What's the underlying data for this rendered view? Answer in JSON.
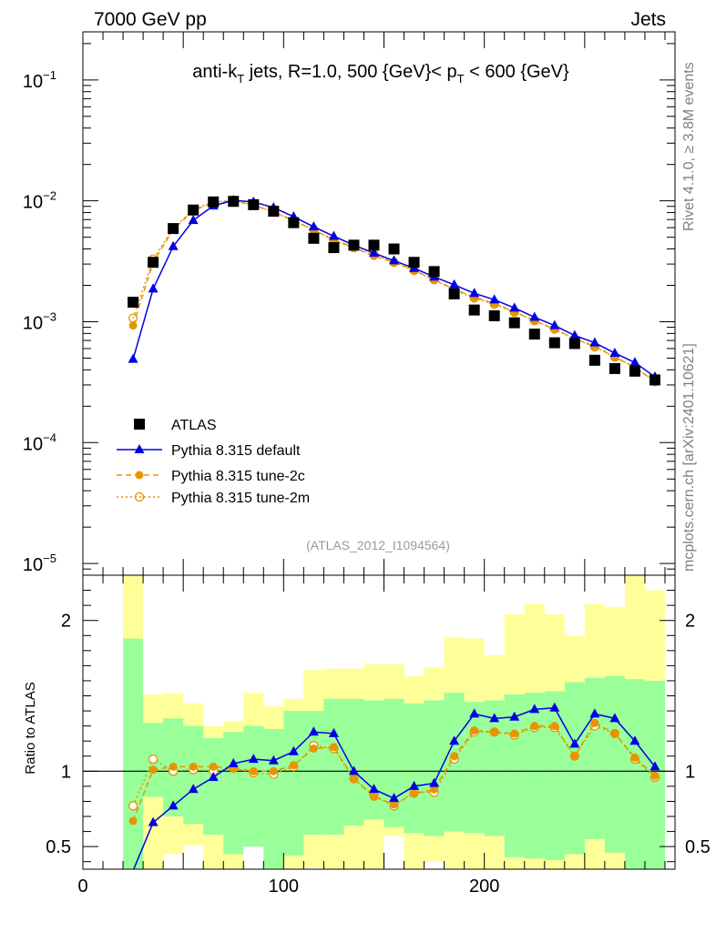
{
  "header": {
    "left": "7000 GeV pp",
    "right": "Jets"
  },
  "side_labels": {
    "top": "Rivet 4.1.0, ≥ 3.8M events",
    "bottom": "mcplots.cern.ch [arXiv:2401.10621]"
  },
  "chart_data": {
    "type": "scatter",
    "title": {
      "pre": "anti-k",
      "sub1": "T",
      "mid": " jets, R=1.0, 500 {GeV}< p",
      "sub2": "T",
      "post": " < 600 {GeV}"
    },
    "analysis_id": "(ATLAS_2012_I1094564)",
    "xlim": [
      0,
      295
    ],
    "x_ticks": [
      0,
      100,
      200
    ],
    "upper": {
      "yscale": "log",
      "ylim": [
        8e-06,
        0.25
      ],
      "y_ticks": [
        {
          "v": 0.1,
          "base": "10",
          "exp": "−1"
        },
        {
          "v": 0.01,
          "base": "10",
          "exp": "−2"
        },
        {
          "v": 0.001,
          "base": "10",
          "exp": "−3"
        },
        {
          "v": 0.0001,
          "base": "10",
          "exp": "−4"
        },
        {
          "v": 1e-05,
          "base": "10",
          "exp": "−5"
        }
      ]
    },
    "lower": {
      "ylabel": "Ratio to ATLAS",
      "ylim": [
        0.35,
        2.3
      ],
      "y_ticks": [
        {
          "v": 0.5,
          "label": "0.5"
        },
        {
          "v": 1,
          "label": "1"
        },
        {
          "v": 2,
          "label": "2"
        }
      ]
    },
    "x": [
      25,
      35,
      45,
      55,
      65,
      75,
      85,
      95,
      105,
      115,
      125,
      135,
      145,
      155,
      165,
      175,
      185,
      195,
      205,
      215,
      225,
      235,
      245,
      255,
      265,
      275,
      285
    ],
    "bin_edges": [
      20,
      30,
      40,
      50,
      60,
      70,
      80,
      90,
      100,
      110,
      120,
      130,
      140,
      150,
      160,
      170,
      180,
      190,
      200,
      210,
      220,
      230,
      240,
      250,
      260,
      270,
      280,
      290
    ],
    "series": [
      {
        "name": "ATLAS",
        "style": "data",
        "color": "#000000",
        "values": [
          0.00145,
          0.0031,
          0.0059,
          0.0084,
          0.0098,
          0.0099,
          0.0093,
          0.0082,
          0.0066,
          0.0049,
          0.0041,
          0.0043,
          0.0043,
          0.004,
          0.0031,
          0.0026,
          0.0017,
          0.00125,
          0.00112,
          0.00098,
          0.00079,
          0.00067,
          0.00066,
          0.00048,
          0.00041,
          0.00039,
          0.00033
        ]
      },
      {
        "name": "Pythia 8.315 default",
        "style": "solid-triangle",
        "color": "#0000e6",
        "values": [
          0.00049,
          0.00187,
          0.0042,
          0.0069,
          0.0091,
          0.0101,
          0.0098,
          0.0088,
          0.0074,
          0.0061,
          0.0051,
          0.0043,
          0.0037,
          0.0032,
          0.00277,
          0.00235,
          0.00202,
          0.00172,
          0.00152,
          0.0013,
          0.00109,
          0.00093,
          0.00077,
          0.00067,
          0.00055,
          0.00046,
          0.00035
        ]
      },
      {
        "name": "Pythia 8.315 tune-2c",
        "style": "dashed-filled-circle",
        "color": "#e69500",
        "values": [
          0.00093,
          0.0031,
          0.0058,
          0.0083,
          0.0097,
          0.01,
          0.0092,
          0.0081,
          0.0069,
          0.0057,
          0.0048,
          0.0041,
          0.0035,
          0.0031,
          0.00266,
          0.00223,
          0.00186,
          0.00159,
          0.00142,
          0.00121,
          0.00102,
          0.00087,
          0.00072,
          0.00063,
          0.00051,
          0.00042,
          0.00032
        ]
      },
      {
        "name": "Pythia 8.315 tune-2m",
        "style": "dotted-open-circle",
        "color": "#e69500",
        "values": [
          0.00107,
          0.0033,
          0.0059,
          0.0085,
          0.0098,
          0.0101,
          0.0092,
          0.0081,
          0.0068,
          0.0058,
          0.0047,
          0.0041,
          0.0036,
          0.0031,
          0.00266,
          0.00223,
          0.00183,
          0.00157,
          0.0014,
          0.0012,
          0.00102,
          0.00087,
          0.00072,
          0.00062,
          0.00051,
          0.00042,
          0.00032
        ]
      }
    ],
    "ratios": {
      "Pythia 8.315 default": [
        0.34,
        0.66,
        0.77,
        0.88,
        0.96,
        1.05,
        1.08,
        1.07,
        1.13,
        1.26,
        1.25,
        1.0,
        0.88,
        0.82,
        0.9,
        0.92,
        1.2,
        1.38,
        1.35,
        1.36,
        1.41,
        1.42,
        1.18,
        1.38,
        1.35,
        1.2,
        1.03
      ],
      "Pythia 8.315 tune-2c": [
        0.67,
        1.01,
        1.03,
        1.03,
        1.03,
        1.02,
        1.0,
        1.0,
        1.04,
        1.15,
        1.16,
        0.95,
        0.83,
        0.78,
        0.85,
        0.88,
        1.1,
        1.27,
        1.26,
        1.25,
        1.3,
        1.3,
        1.1,
        1.32,
        1.25,
        1.09,
        0.97
      ],
      "Pythia 8.315 tune-2m": [
        0.77,
        1.08,
        1.0,
        1.01,
        1.0,
        1.02,
        0.99,
        0.98,
        1.03,
        1.17,
        1.15,
        0.95,
        0.84,
        0.77,
        0.86,
        0.86,
        1.08,
        1.26,
        1.26,
        1.24,
        1.29,
        1.29,
        1.1,
        1.3,
        1.25,
        1.08,
        0.96
      ]
    },
    "bands": {
      "green": [
        [
          0.3,
          1.88
        ],
        [
          0.83,
          1.32
        ],
        [
          0.7,
          1.35
        ],
        [
          0.65,
          1.3
        ],
        [
          0.58,
          1.22
        ],
        [
          0.45,
          1.26
        ],
        [
          0.5,
          1.3
        ],
        [
          0.3,
          1.28
        ],
        [
          0.44,
          1.4
        ],
        [
          0.58,
          1.4
        ],
        [
          0.58,
          1.48
        ],
        [
          0.64,
          1.48
        ],
        [
          0.68,
          1.47
        ],
        [
          0.63,
          1.48
        ],
        [
          0.59,
          1.45
        ],
        [
          0.57,
          1.47
        ],
        [
          0.6,
          1.52
        ],
        [
          0.59,
          1.46
        ],
        [
          0.57,
          1.47
        ],
        [
          0.43,
          1.51
        ],
        [
          0.42,
          1.52
        ],
        [
          0.41,
          1.53
        ],
        [
          0.45,
          1.59
        ],
        [
          0.55,
          1.62
        ],
        [
          0.46,
          1.63
        ],
        [
          0.3,
          1.61
        ],
        [
          0.3,
          1.6
        ]
      ],
      "yellow": [
        [
          0.3,
          2.35
        ],
        [
          0.3,
          1.51
        ],
        [
          0.45,
          1.52
        ],
        [
          0.51,
          1.45
        ],
        [
          0.3,
          1.3
        ],
        [
          0.3,
          1.33
        ],
        [
          0.57,
          1.52
        ],
        [
          0.3,
          1.43
        ],
        [
          0.3,
          1.48
        ],
        [
          0.36,
          1.67
        ],
        [
          0.3,
          1.68
        ],
        [
          0.3,
          1.68
        ],
        [
          0.3,
          1.71
        ],
        [
          0.57,
          1.71
        ],
        [
          0.3,
          1.63
        ],
        [
          0.4,
          1.69
        ],
        [
          0.3,
          1.89
        ],
        [
          0.3,
          1.88
        ],
        [
          0.3,
          1.77
        ],
        [
          0.3,
          2.04
        ],
        [
          0.3,
          2.11
        ],
        [
          0.3,
          2.04
        ],
        [
          0.3,
          1.9
        ],
        [
          0.3,
          2.11
        ],
        [
          0.3,
          2.09
        ],
        [
          0.3,
          2.35
        ],
        [
          0.3,
          2.2
        ]
      ]
    },
    "legend": {
      "placement": "middle-left",
      "entries": [
        "ATLAS",
        "Pythia 8.315 default",
        "Pythia 8.315 tune-2c",
        "Pythia 8.315 tune-2m"
      ]
    }
  }
}
